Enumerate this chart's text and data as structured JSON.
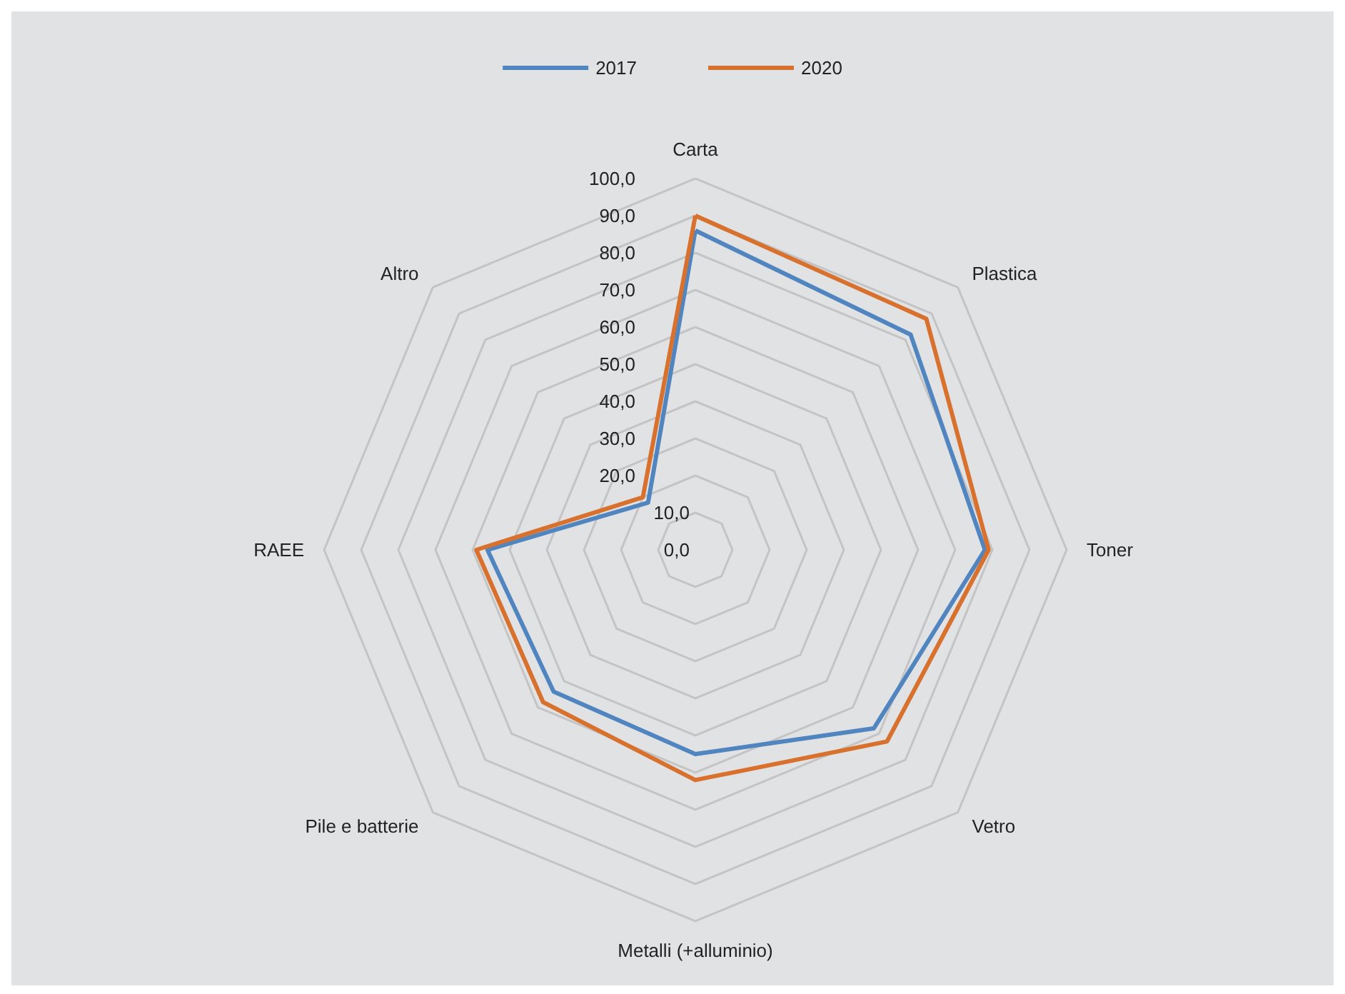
{
  "chart_data": {
    "type": "radar",
    "categories": [
      "Carta",
      "Plastica",
      "Toner",
      "Vetro",
      "Metalli (+alluminio)",
      "Pile e batterie",
      "RAEE",
      "Altro"
    ],
    "series": [
      {
        "name": "2017",
        "color": "#5085bf",
        "values": [
          86,
          82,
          78,
          68,
          55,
          54,
          56,
          18
        ]
      },
      {
        "name": "2020",
        "color": "#d8702e",
        "values": [
          90,
          88,
          79,
          73,
          62,
          58,
          59,
          20
        ]
      }
    ],
    "ylim": [
      0,
      100
    ],
    "yticks": [
      {
        "value": 0,
        "label": "0,0"
      },
      {
        "value": 10,
        "label": "10,0"
      },
      {
        "value": 20,
        "label": "20,0"
      },
      {
        "value": 30,
        "label": "30,0"
      },
      {
        "value": 40,
        "label": "40,0"
      },
      {
        "value": 50,
        "label": "50,0"
      },
      {
        "value": 60,
        "label": "60,0"
      },
      {
        "value": 70,
        "label": "70,0"
      },
      {
        "value": 80,
        "label": "80,0"
      },
      {
        "value": 90,
        "label": "90,0"
      },
      {
        "value": 100,
        "label": "100,0"
      }
    ],
    "grid": true,
    "legend": "top",
    "marker": "none",
    "line_style": "solid"
  }
}
